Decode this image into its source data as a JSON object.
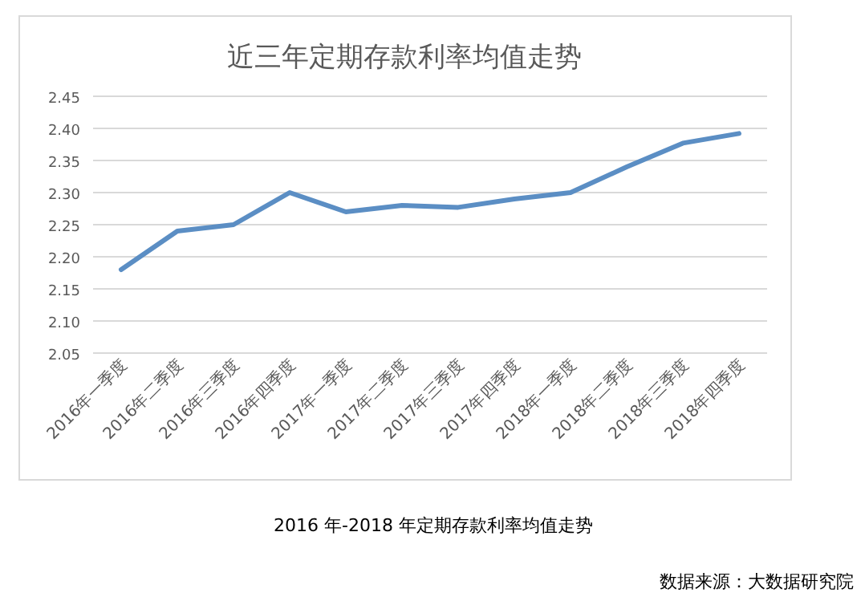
{
  "chart_data": {
    "type": "line",
    "title": "近三年定期存款利率均值走势",
    "subtitle": "2016 年-2018 年定期存款利率均值走势",
    "annotations": [
      "数据来源：大数据研究院"
    ],
    "categories": [
      "2016年一季度",
      "2016年二季度",
      "2016年三季度",
      "2016年四季度",
      "2017年一季度",
      "2017年二季度",
      "2017年三季度",
      "2017年四季度",
      "2018年一季度",
      "2018年二季度",
      "2018年三季度",
      "2018年四季度"
    ],
    "series": [
      {
        "color": "#5b8ec4",
        "values": [
          2.18,
          2.24,
          2.25,
          2.3,
          2.27,
          2.28,
          2.277,
          2.29,
          2.3,
          2.34,
          2.377,
          2.392
        ]
      }
    ],
    "ylim": [
      2.05,
      2.45
    ],
    "yticks": [
      2.05,
      {
        "value": 2.1,
        "label": "2.10"
      },
      2.15,
      {
        "value": 2.2,
        "label": "2.20"
      },
      2.25,
      {
        "value": 2.3,
        "label": "2.30"
      },
      2.35,
      {
        "value": 2.4,
        "label": "2.40"
      },
      2.45
    ],
    "grid": "y",
    "marker": "none",
    "line_style": "solid"
  }
}
